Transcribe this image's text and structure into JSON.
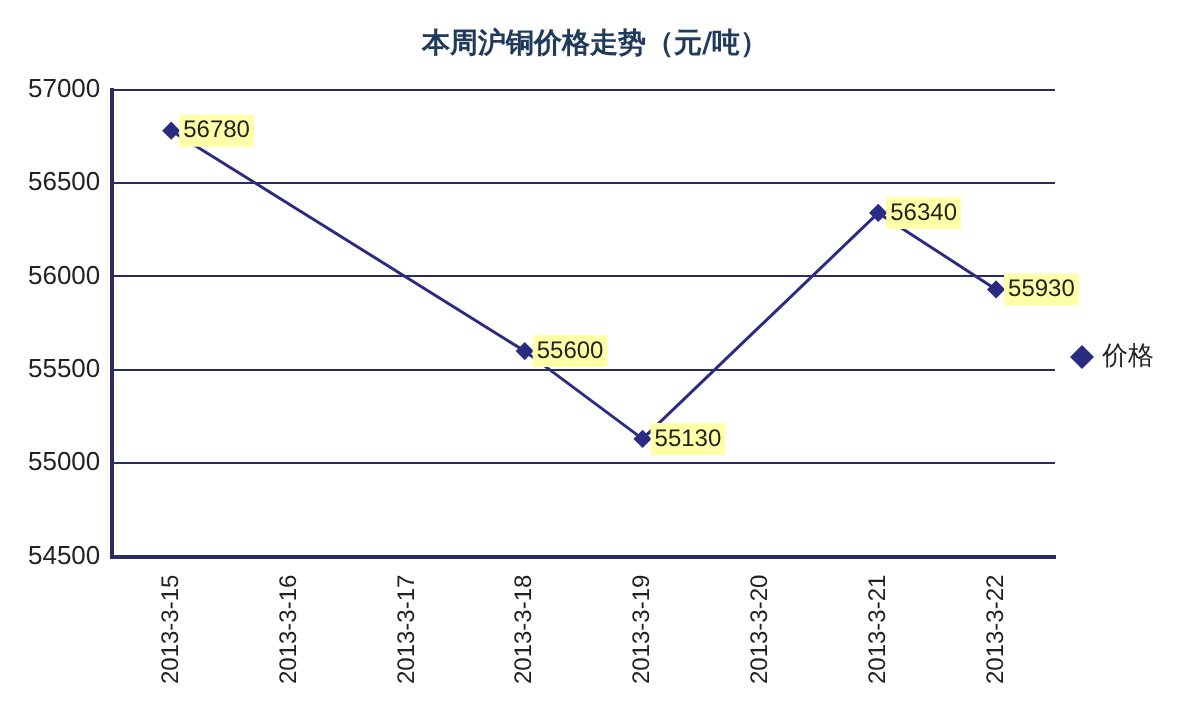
{
  "chart_data": {
    "type": "line",
    "title": "本周沪铜价格走势（元/吨）",
    "categories": [
      "2013-3-15",
      "2013-3-16",
      "2013-3-17",
      "2013-3-18",
      "2013-3-19",
      "2013-3-20",
      "2013-3-21",
      "2013-3-22"
    ],
    "series": [
      {
        "name": "价格",
        "color": "#2b2b80",
        "values": [
          56780,
          null,
          null,
          55600,
          55130,
          null,
          56340,
          55930
        ]
      }
    ],
    "ylim": [
      54500,
      57000
    ],
    "yticks": [
      54500,
      55000,
      55500,
      56000,
      56500,
      57000
    ],
    "grid": "y",
    "legend": "right",
    "marker": "diamond",
    "line_style": "solid",
    "data_labels": true
  }
}
